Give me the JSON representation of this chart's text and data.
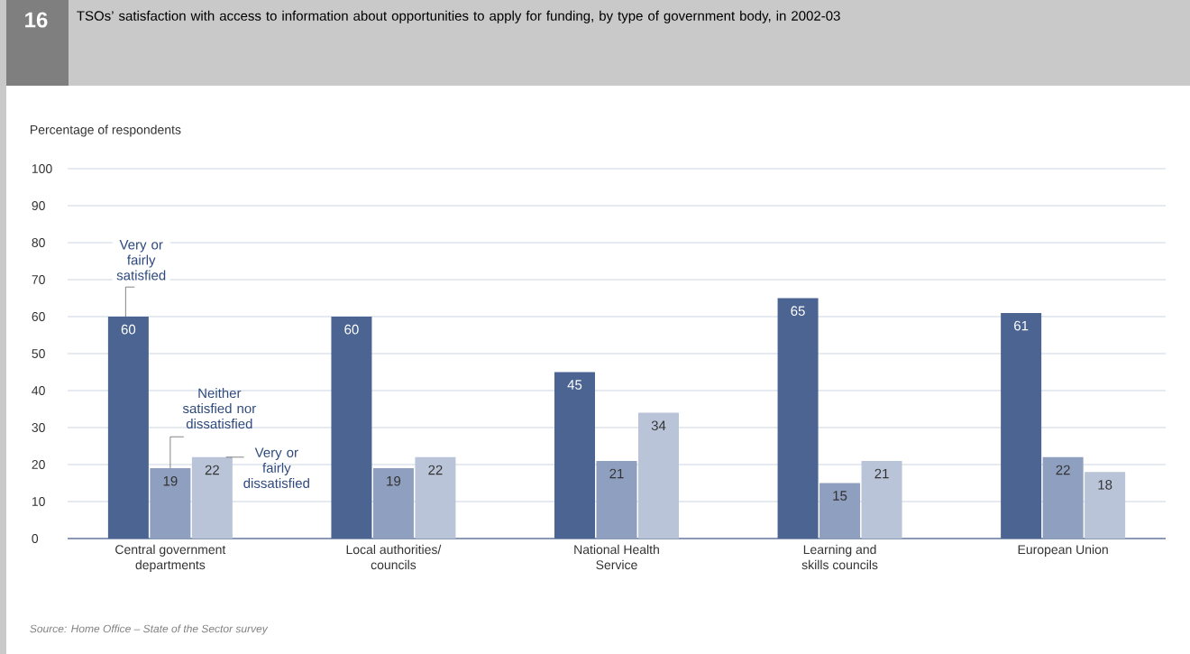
{
  "chart_data": {
    "type": "bar",
    "title": "TSOs’ satisfaction with access to information about opportunities to apply for funding, by type of government body, in 2002-03",
    "ylabel": "Percentage of respondents",
    "annotations": [
      "16",
      "Source: Home Office – State of the Sector survey"
    ],
    "categories": [
      "Central government departments",
      "Local authorities/ councils",
      "National Health Service",
      "Learning and skills councils",
      "European Union"
    ],
    "series": [
      {
        "name": "Very or fairly satisfied",
        "color": "#4b6491",
        "values": [
          60,
          60,
          45,
          65,
          61
        ]
      },
      {
        "name": "Neither satisfied nor dissatisfied",
        "color": "#8e9fbf",
        "values": [
          19,
          19,
          21,
          15,
          22
        ]
      },
      {
        "name": "Very or fairly dissatisfied",
        "color": "#bac4d8",
        "values": [
          22,
          22,
          34,
          21,
          18
        ]
      }
    ],
    "ylim": [
      0,
      100
    ],
    "yticks": [
      0,
      10,
      20,
      30,
      40,
      50,
      60,
      70,
      80,
      90,
      100
    ],
    "grid": "y",
    "legend": false,
    "data_labels": true
  }
}
